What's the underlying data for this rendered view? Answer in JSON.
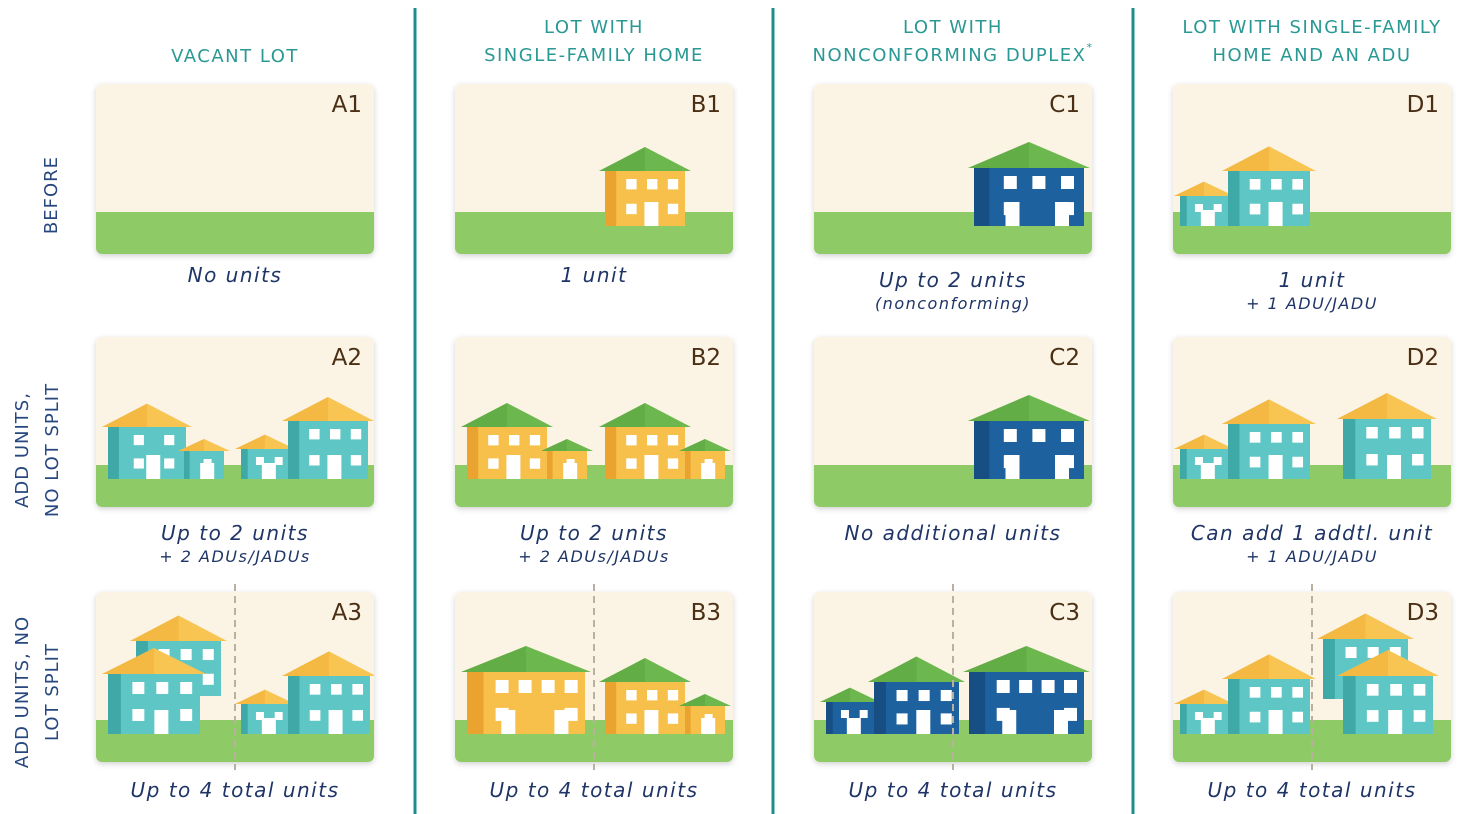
{
  "columns": [
    {
      "title_lines": [
        "VACANT LOT"
      ]
    },
    {
      "title_lines": [
        "LOT WITH",
        "SINGLE-FAMILY HOME"
      ]
    },
    {
      "title_lines": [
        "LOT WITH",
        "NONCONFORMING DUPLEX"
      ],
      "asterisk": "*"
    },
    {
      "title_lines": [
        "LOT WITH SINGLE-FAMILY",
        "HOME AND AN ADU"
      ]
    }
  ],
  "rows": [
    {
      "label_lines": [
        "BEFORE"
      ]
    },
    {
      "label_lines": [
        "ADD UNITS,",
        "NO LOT SPLIT"
      ]
    },
    {
      "label_lines": [
        "ADD UNITS, NO",
        "LOT SPLIT"
      ]
    }
  ],
  "cells": [
    [
      {
        "id": "A1",
        "caption": "No units"
      },
      {
        "id": "B1",
        "caption": "1 unit"
      },
      {
        "id": "C1",
        "caption": "Up to 2 units",
        "subcaption": "(nonconforming)"
      },
      {
        "id": "D1",
        "caption": "1 unit",
        "subcaption": "+ 1 ADU/JADU"
      }
    ],
    [
      {
        "id": "A2",
        "caption": "Up to 2 units",
        "subcaption": "+ 2 ADUs/JADUs"
      },
      {
        "id": "B2",
        "caption": "Up to 2 units",
        "subcaption": "+ 2 ADUs/JADUs"
      },
      {
        "id": "C2",
        "caption": "No additional units"
      },
      {
        "id": "D2",
        "caption": "Can add 1 addtl. unit",
        "subcaption": "+ 1 ADU/JADU"
      }
    ],
    [
      {
        "id": "A3",
        "caption": "Up to 4 total units"
      },
      {
        "id": "B3",
        "caption": "Up to 4 total units"
      },
      {
        "id": "C3",
        "caption": "Up to 4 total units"
      },
      {
        "id": "D3",
        "caption": "Up to 4 total units"
      }
    ]
  ]
}
